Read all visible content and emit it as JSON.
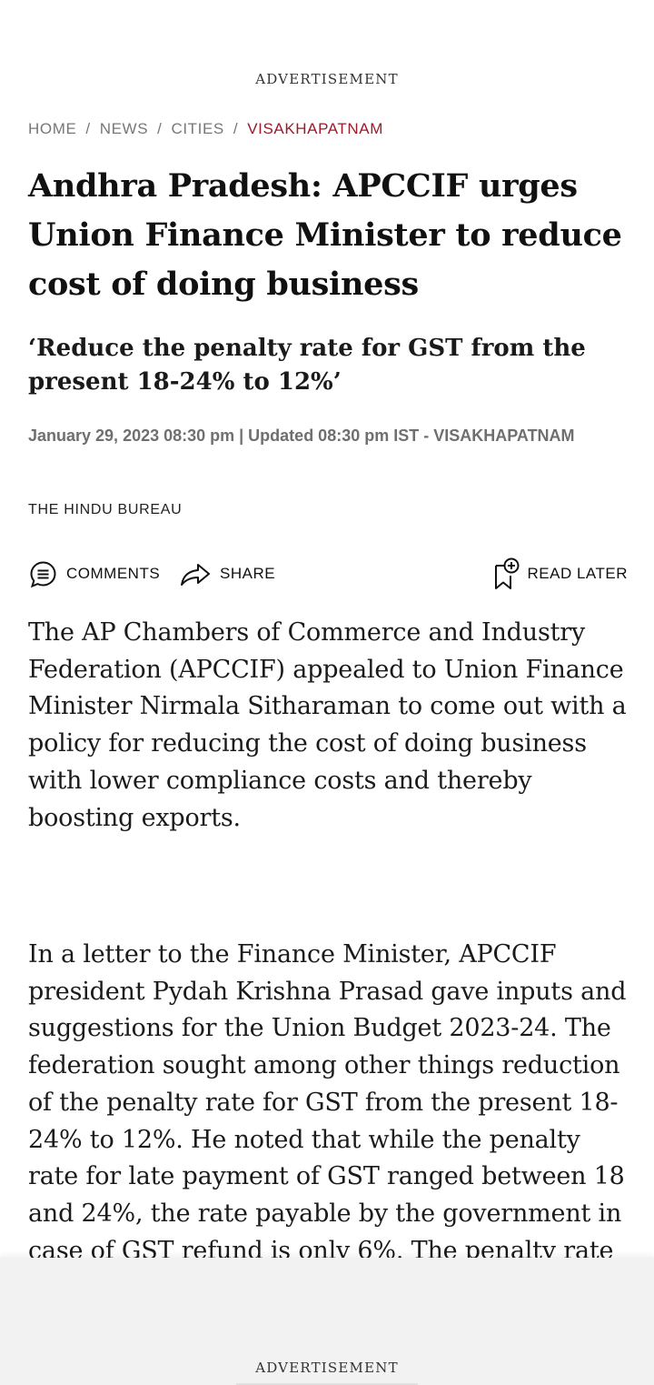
{
  "ads": {
    "top_label": "ADVERTISEMENT",
    "bottom_label": "ADVERTISEMENT"
  },
  "breadcrumb": {
    "items": [
      "HOME",
      "NEWS",
      "CITIES",
      "VISAKHAPATNAM"
    ],
    "separator": "/"
  },
  "article": {
    "headline": "Andhra Pradesh: APCCIF urges Union Finance Minister to reduce cost of doing business",
    "subheadline": "‘Reduce the penalty rate for GST from the present 18-24% to 12%’",
    "dateline": "January 29, 2023 08:30 pm | Updated 08:30 pm IST - VISAKHAPATNAM",
    "byline": "THE HINDU BUREAU",
    "paragraphs": [
      "The AP Chambers of Commerce and Industry Federation (APCCIF) appealed to Union Finance Minister Nirmala Sitharaman to come out with a policy for reducing the cost of doing business with lower compliance costs and thereby boosting exports.",
      "In a letter to the Finance Minister, APCCIF president Pydah Krishna Prasad gave inputs and suggestions for the Union Budget 2023-24. The federation sought among other things reduction of the penalty rate for GST from the present 18-24% to 12%. He noted that while the penalty rate for late payment of GST ranged between 18 and 24%, the rate payable by the government in case of GST refund is only 6%. The penalty rate should"
    ]
  },
  "actions": {
    "comments_label": "COMMENTS",
    "share_label": "SHARE",
    "read_later_label": "READ LATER",
    "icons": {
      "comments": "comment-bubble-icon",
      "share": "share-arrow-icon",
      "read_later": "bookmark-plus-icon"
    }
  },
  "colors": {
    "accent": "#9a1b2c",
    "text": "#111111",
    "muted": "#777777",
    "ad_background": "#f2f2f2"
  }
}
